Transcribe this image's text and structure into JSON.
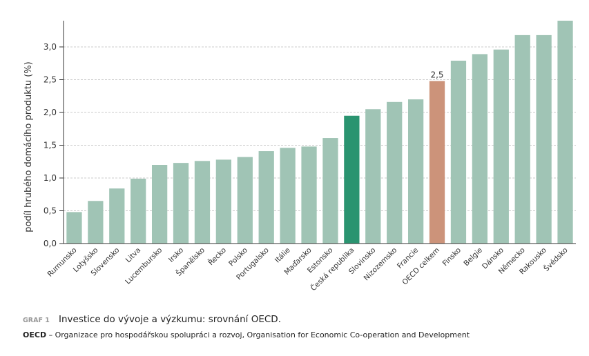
{
  "chart_data": {
    "type": "bar",
    "ylabel": "podíl hrubého domácího produktu (%)",
    "caption_label": "GRAF 1",
    "caption": "Investice do vývoje a výzkumu: srovnání OECD.",
    "note_abbr": "OECD",
    "note": "– Organizace pro hospodářskou spolupráci a rozvoj, Organisation for Economic Co-operation and Development",
    "categories": [
      "Rumunsko",
      "Lotyšsko",
      "Slovensko",
      "Litva",
      "Lucembursko",
      "Irsko",
      "Španělsko",
      "Řecko",
      "Polsko",
      "Portugalsko",
      "Itálie",
      "Maďarsko",
      "Estonsko",
      "Česká republika",
      "Slovinsko",
      "Nizozemsko",
      "Francie",
      "OECD celkem",
      "Finsko",
      "Belgie",
      "Dánsko",
      "Německo",
      "Rakousko",
      "Švédsko"
    ],
    "values": [
      0.48,
      0.65,
      0.84,
      0.99,
      1.2,
      1.23,
      1.26,
      1.28,
      1.32,
      1.41,
      1.46,
      1.48,
      1.61,
      1.95,
      2.05,
      2.16,
      2.2,
      2.48,
      2.79,
      2.89,
      2.96,
      3.18,
      3.18,
      3.4
    ],
    "value_labels": [
      null,
      null,
      null,
      null,
      null,
      null,
      null,
      null,
      null,
      null,
      null,
      null,
      null,
      null,
      null,
      null,
      null,
      "2,5",
      null,
      null,
      null,
      null,
      null,
      null
    ],
    "colors": [
      "#a0c4b5",
      "#a0c4b5",
      "#a0c4b5",
      "#a0c4b5",
      "#a0c4b5",
      "#a0c4b5",
      "#a0c4b5",
      "#a0c4b5",
      "#a0c4b5",
      "#a0c4b5",
      "#a0c4b5",
      "#a0c4b5",
      "#a0c4b5",
      "#2a9470",
      "#a0c4b5",
      "#a0c4b5",
      "#a0c4b5",
      "#cc937a",
      "#a0c4b5",
      "#a0c4b5",
      "#a0c4b5",
      "#a0c4b5",
      "#a0c4b5",
      "#a0c4b5"
    ],
    "ylim": [
      0,
      3.4
    ],
    "yticks": [
      {
        "value": 0,
        "label": "0,0"
      },
      {
        "value": 0.5,
        "label": "0,5"
      },
      {
        "value": 1,
        "label": "1,0"
      },
      {
        "value": 1.5,
        "label": "1,5"
      },
      {
        "value": 2,
        "label": "2,0"
      },
      {
        "value": 2.5,
        "label": "2,5"
      },
      {
        "value": 3,
        "label": "3,0"
      }
    ],
    "grid": true
  }
}
